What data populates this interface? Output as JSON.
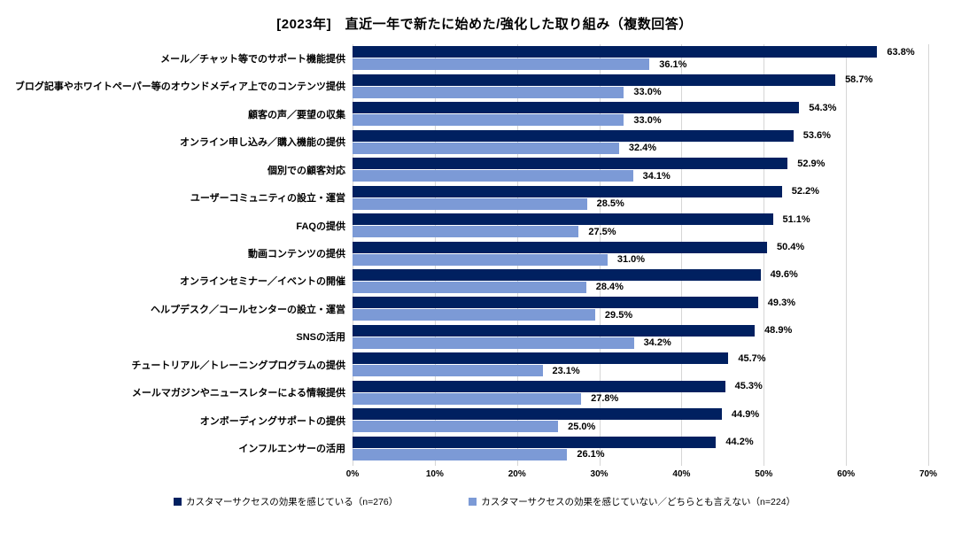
{
  "chart": {
    "title": "[2023年]　直近一年で新たに始めた/強化した取り組み（複数回答）"
  },
  "colors": {
    "series_dark": "#002060",
    "series_light": "#7C9AD6",
    "gridline": "#D6D6D6",
    "label_text": "#000000",
    "background": "#FFFFFF"
  },
  "chart_data": {
    "type": "bar",
    "orientation": "horizontal",
    "title": "[2023年]　直近一年で新たに始めた/強化した取り組み（複数回答）",
    "xlabel": "",
    "ylabel": "",
    "xlim": [
      0,
      70
    ],
    "x_tick_step": 10,
    "x_ticks": [
      "0%",
      "10%",
      "20%",
      "30%",
      "40%",
      "50%",
      "60%",
      "70%"
    ],
    "grid": true,
    "legend_position": "bottom",
    "value_label_suffix": "%",
    "categories": [
      "メール／チャット等でのサポート機能提供",
      "ブログ記事やホワイトペーパー等のオウンドメディア上でのコンテンツ提供",
      "顧客の声／要望の収集",
      "オンライン申し込み／購入機能の提供",
      "個別での顧客対応",
      "ユーザーコミュニティの設立・運営",
      "FAQの提供",
      "動画コンテンツの提供",
      "オンラインセミナー／イベントの開催",
      "ヘルプデスク／コールセンターの設立・運営",
      "SNSの活用",
      "チュートリアル／トレーニングプログラムの提供",
      "メールマガジンやニュースレターによる情報提供",
      "オンボーディングサポートの提供",
      "インフルエンサーの活用"
    ],
    "series": [
      {
        "name": "カスタマーサクセスの効果を感じている（n=276）",
        "color": "#002060",
        "values": [
          63.8,
          58.7,
          54.3,
          53.6,
          52.9,
          52.2,
          51.1,
          50.4,
          49.6,
          49.3,
          48.9,
          45.7,
          45.3,
          44.9,
          44.2
        ]
      },
      {
        "name": "カスタマーサクセスの効果を感じていない／どちらとも言えない（n=224）",
        "color": "#7C9AD6",
        "values": [
          36.1,
          33.0,
          33.0,
          32.4,
          34.1,
          28.5,
          27.5,
          31.0,
          28.4,
          29.5,
          34.2,
          23.1,
          27.8,
          25.0,
          26.1
        ]
      }
    ]
  }
}
